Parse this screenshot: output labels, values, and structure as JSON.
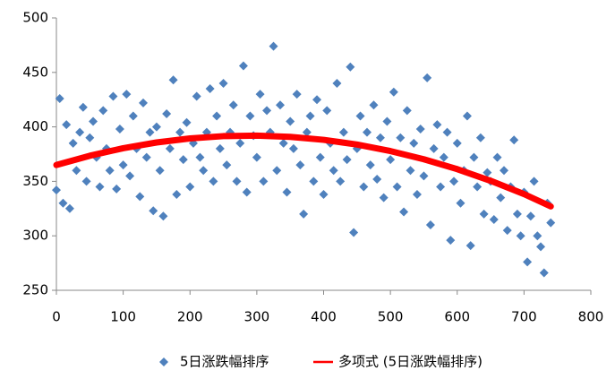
{
  "chart_data": {
    "type": "scatter",
    "xlim": [
      0,
      800
    ],
    "xticks": [
      0,
      100,
      200,
      300,
      400,
      500,
      600,
      700,
      800
    ],
    "ylim": [
      250,
      500
    ],
    "yticks": [
      250,
      300,
      350,
      400,
      450,
      500
    ],
    "grid": false,
    "legend": "bottom",
    "series": [
      {
        "name": "5日涨跌幅排序",
        "type": "scatter",
        "color": "#4f81bd",
        "x": [
          0,
          5,
          10,
          15,
          20,
          25,
          30,
          35,
          40,
          45,
          50,
          55,
          60,
          65,
          70,
          75,
          80,
          85,
          90,
          95,
          100,
          105,
          110,
          115,
          120,
          125,
          130,
          135,
          140,
          145,
          150,
          155,
          160,
          165,
          170,
          175,
          180,
          185,
          190,
          195,
          200,
          205,
          210,
          215,
          220,
          225,
          230,
          235,
          240,
          245,
          250,
          255,
          260,
          265,
          270,
          275,
          280,
          285,
          290,
          295,
          300,
          305,
          310,
          315,
          320,
          325,
          330,
          335,
          340,
          345,
          350,
          355,
          360,
          365,
          370,
          375,
          380,
          385,
          390,
          395,
          400,
          405,
          410,
          415,
          420,
          425,
          430,
          435,
          440,
          445,
          450,
          455,
          460,
          465,
          470,
          475,
          480,
          485,
          490,
          495,
          500,
          505,
          510,
          515,
          520,
          525,
          530,
          535,
          540,
          545,
          550,
          555,
          560,
          565,
          570,
          575,
          580,
          585,
          590,
          595,
          600,
          605,
          610,
          615,
          620,
          625,
          630,
          635,
          640,
          645,
          650,
          655,
          660,
          665,
          670,
          675,
          680,
          685,
          690,
          695,
          700,
          705,
          710,
          715,
          720,
          725,
          730,
          735,
          740
        ],
        "values": [
          342,
          426,
          330,
          402,
          325,
          385,
          360,
          395,
          418,
          350,
          390,
          405,
          372,
          345,
          415,
          380,
          360,
          428,
          343,
          398,
          365,
          430,
          355,
          410,
          380,
          336,
          422,
          372,
          395,
          323,
          400,
          360,
          318,
          412,
          380,
          443,
          338,
          395,
          370,
          404,
          345,
          385,
          428,
          372,
          360,
          395,
          435,
          350,
          410,
          380,
          440,
          365,
          395,
          420,
          350,
          385,
          456,
          340,
          410,
          392,
          372,
          430,
          350,
          415,
          395,
          474,
          360,
          420,
          385,
          340,
          405,
          380,
          430,
          365,
          320,
          395,
          410,
          350,
          425,
          372,
          338,
          415,
          385,
          360,
          440,
          350,
          395,
          370,
          455,
          303,
          380,
          410,
          345,
          395,
          365,
          420,
          352,
          390,
          335,
          405,
          370,
          432,
          345,
          390,
          322,
          415,
          360,
          385,
          338,
          398,
          355,
          445,
          310,
          380,
          402,
          345,
          372,
          395,
          296,
          350,
          385,
          330,
          360,
          410,
          291,
          372,
          345,
          390,
          320,
          358,
          350,
          315,
          372,
          335,
          360,
          305,
          345,
          388,
          320,
          300,
          340,
          276,
          318,
          350,
          300,
          290,
          266,
          330,
          312
        ]
      },
      {
        "name": "多项式 (5日涨跌幅排序)",
        "type": "line",
        "color": "#ff0000",
        "x": [
          0,
          50,
          100,
          150,
          200,
          250,
          300,
          350,
          400,
          450,
          500,
          550,
          600,
          650,
          700,
          740
        ],
        "values": [
          365,
          373.5,
          380.4,
          385.7,
          389.4,
          391.5,
          392,
          390.8,
          388.1,
          383.8,
          377.8,
          370.3,
          361.2,
          350.5,
          338.3,
          327
        ]
      }
    ]
  }
}
